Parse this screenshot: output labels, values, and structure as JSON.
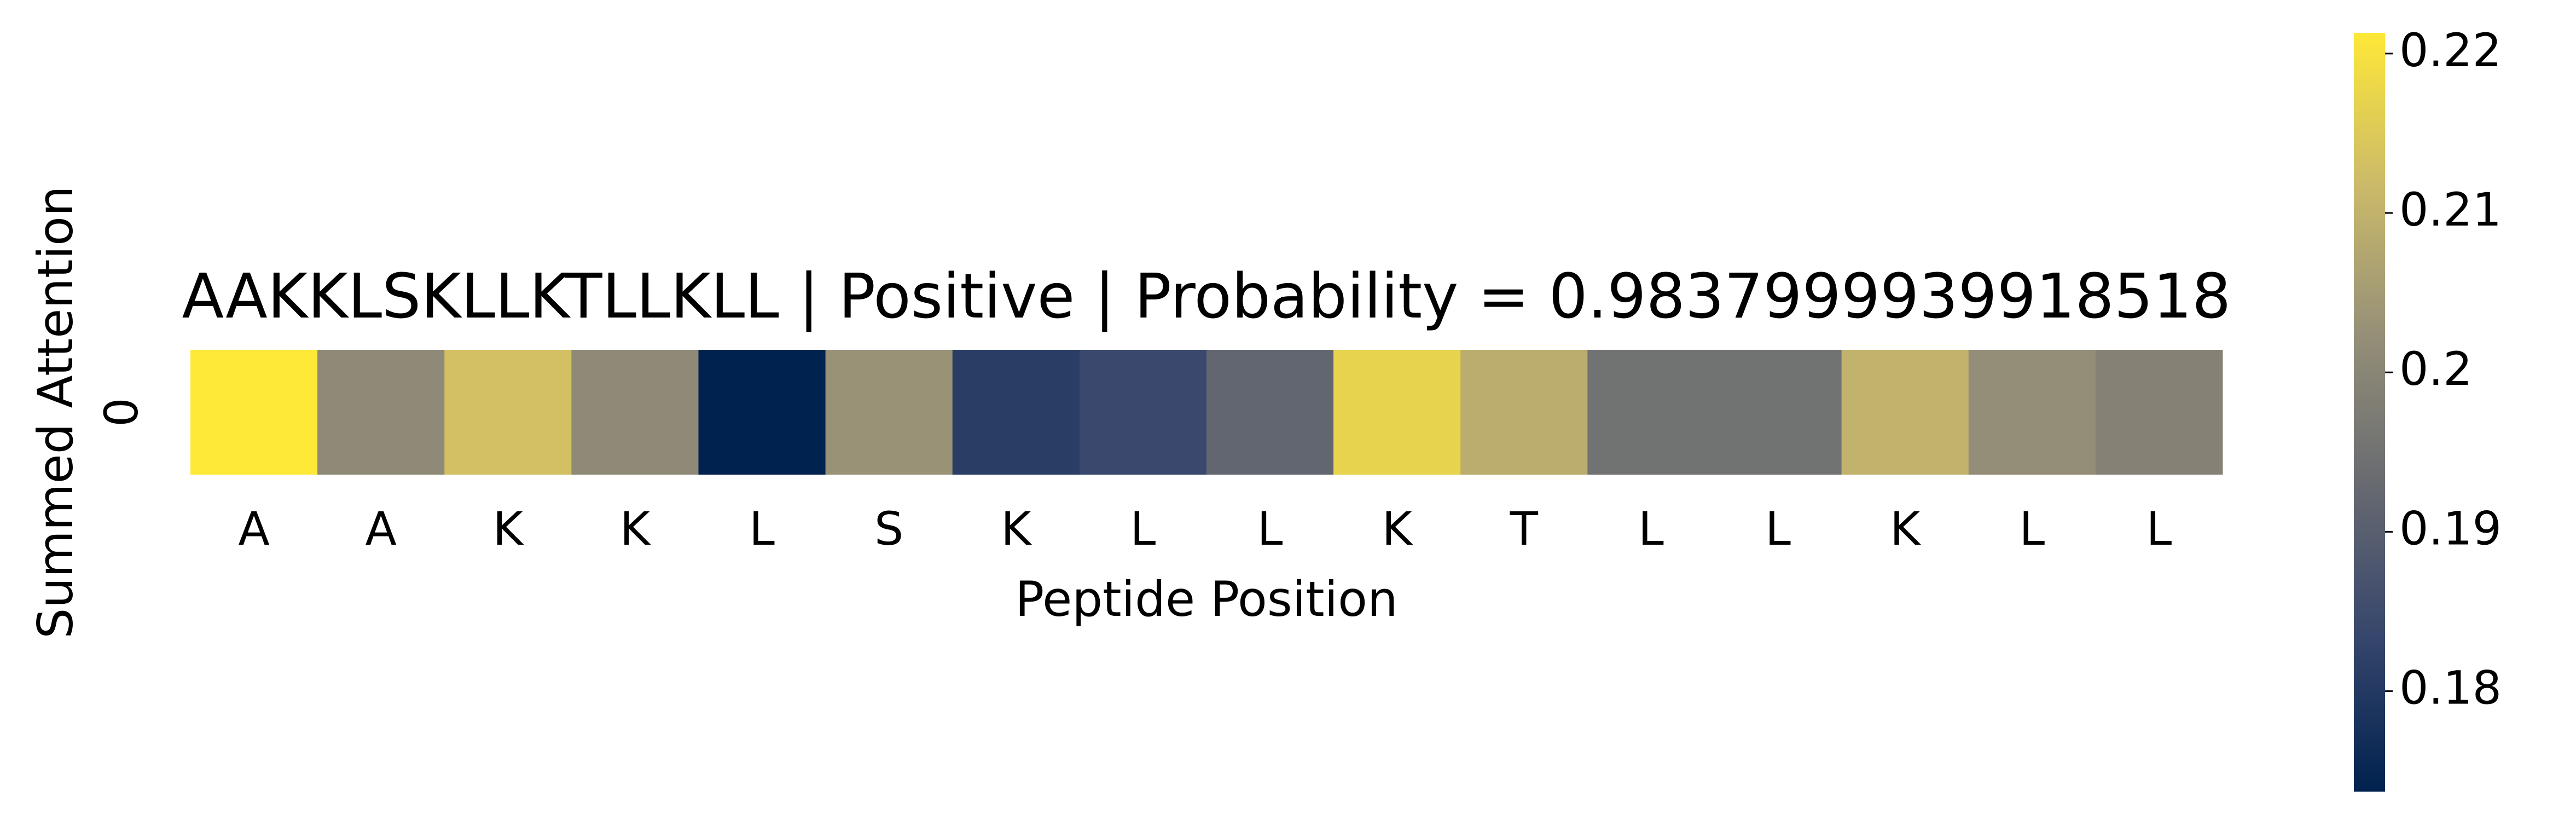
{
  "chart_data": {
    "type": "heatmap",
    "title": "AAKKLSKLLKTLLKLL | Positive | Probability = 0.9837999939918518",
    "xlabel": "Peptide Position",
    "ylabel": "Summed Attention",
    "rows": [
      "0"
    ],
    "categories": [
      "A",
      "A",
      "K",
      "K",
      "L",
      "S",
      "K",
      "L",
      "L",
      "K",
      "T",
      "L",
      "L",
      "K",
      "L",
      "L"
    ],
    "values": [
      0.2213,
      0.201,
      0.213,
      0.201,
      0.1737,
      0.203,
      0.181,
      0.184,
      0.192,
      0.217,
      0.209,
      0.195,
      0.195,
      0.21,
      0.202,
      0.199
    ],
    "clim": [
      0.1737,
      0.2213
    ],
    "cbar_ticks": [
      0.18,
      0.19,
      0.2,
      0.21,
      0.22
    ],
    "colormap": [
      "#00224e",
      "#35456c",
      "#666970",
      "#958f78",
      "#cbba69",
      "#fee838"
    ]
  }
}
